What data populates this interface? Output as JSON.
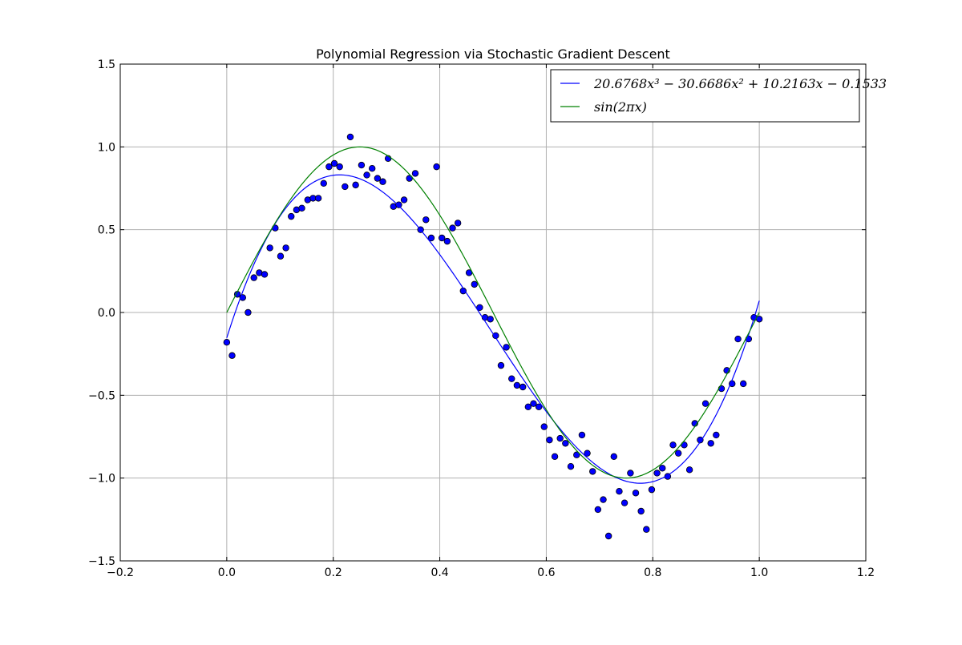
{
  "chart_data": {
    "type": "scatter",
    "title": "Polynomial Regression via Stochastic Gradient Descent",
    "xlabel": "",
    "ylabel": "",
    "xlim": [
      -0.2,
      1.2
    ],
    "ylim": [
      -1.5,
      1.5
    ],
    "xticks": [
      "−0.2",
      "0.0",
      "0.2",
      "0.4",
      "0.6",
      "0.8",
      "1.0",
      "1.2"
    ],
    "yticks": [
      "−1.5",
      "−1.0",
      "−0.5",
      "0.0",
      "0.5",
      "1.0",
      "1.5"
    ],
    "grid": true,
    "legend_position": "top-right",
    "series": [
      {
        "name": "20.6768x³ − 30.6686x² + 10.2163x − 0.1533",
        "kind": "line",
        "color": "#0000ff",
        "coefficients": [
          20.6768,
          -30.6686,
          10.2163,
          -0.1533
        ],
        "x_range": [
          0.0,
          1.0
        ]
      },
      {
        "name": "sin(2πx)",
        "kind": "line",
        "color": "#008000",
        "x_range": [
          0.0,
          1.0
        ]
      },
      {
        "kind": "scatter",
        "color": "#0000ff",
        "x": [
          0.0,
          0.01,
          0.02,
          0.03,
          0.04,
          0.051,
          0.061,
          0.071,
          0.081,
          0.091,
          0.101,
          0.111,
          0.121,
          0.131,
          0.141,
          0.152,
          0.162,
          0.172,
          0.182,
          0.192,
          0.202,
          0.212,
          0.222,
          0.232,
          0.242,
          0.253,
          0.263,
          0.273,
          0.283,
          0.293,
          0.303,
          0.313,
          0.323,
          0.333,
          0.343,
          0.354,
          0.364,
          0.374,
          0.384,
          0.394,
          0.404,
          0.414,
          0.424,
          0.434,
          0.444,
          0.455,
          0.465,
          0.475,
          0.485,
          0.495,
          0.505,
          0.515,
          0.525,
          0.535,
          0.545,
          0.556,
          0.566,
          0.576,
          0.586,
          0.596,
          0.606,
          0.616,
          0.626,
          0.636,
          0.646,
          0.657,
          0.667,
          0.677,
          0.687,
          0.697,
          0.707,
          0.717,
          0.727,
          0.737,
          0.747,
          0.758,
          0.768,
          0.778,
          0.788,
          0.798,
          0.808,
          0.818,
          0.828,
          0.838,
          0.848,
          0.859,
          0.869,
          0.879,
          0.889,
          0.899,
          0.909,
          0.919,
          0.929,
          0.939,
          0.949,
          0.96,
          0.97,
          0.98,
          0.99,
          1.0
        ],
        "y": [
          -0.18,
          -0.26,
          0.11,
          0.09,
          0.0,
          0.21,
          0.24,
          0.23,
          0.39,
          0.51,
          0.34,
          0.39,
          0.58,
          0.62,
          0.63,
          0.68,
          0.69,
          0.69,
          0.78,
          0.88,
          0.9,
          0.88,
          0.76,
          1.06,
          0.77,
          0.89,
          0.83,
          0.87,
          0.81,
          0.79,
          0.93,
          0.64,
          0.65,
          0.68,
          0.81,
          0.84,
          0.5,
          0.56,
          0.45,
          0.88,
          0.45,
          0.43,
          0.51,
          0.54,
          0.13,
          0.24,
          0.17,
          0.03,
          -0.03,
          -0.04,
          -0.14,
          -0.32,
          -0.21,
          -0.4,
          -0.44,
          -0.45,
          -0.57,
          -0.55,
          -0.57,
          -0.69,
          -0.77,
          -0.87,
          -0.76,
          -0.79,
          -0.93,
          -0.86,
          -0.74,
          -0.85,
          -0.96,
          -1.19,
          -1.13,
          -1.35,
          -0.87,
          -1.08,
          -1.15,
          -0.97,
          -1.09,
          -1.2,
          -1.31,
          -1.07,
          -0.97,
          -0.94,
          -0.99,
          -0.8,
          -0.85,
          -0.8,
          -0.95,
          -0.67,
          -0.77,
          -0.55,
          -0.79,
          -0.74,
          -0.46,
          -0.35,
          -0.43,
          -0.16,
          -0.43,
          -0.16,
          -0.03,
          -0.04
        ]
      }
    ]
  }
}
